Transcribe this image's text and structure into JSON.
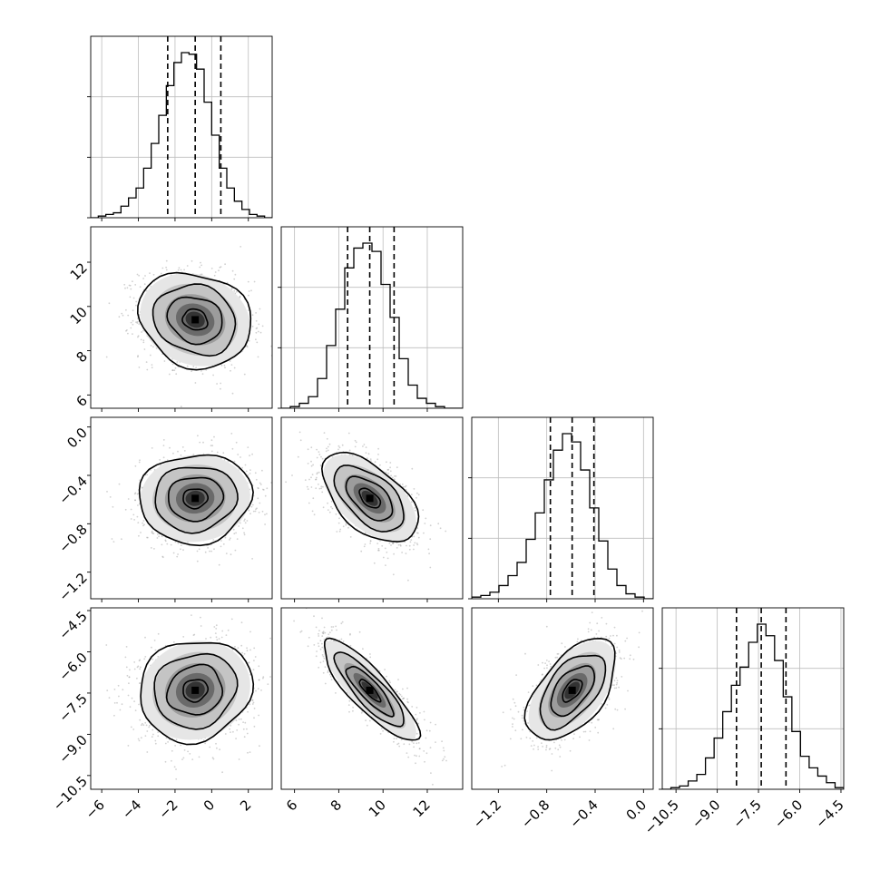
{
  "chart_data": {
    "type": "corner",
    "parameters": 4,
    "grid": true,
    "quantile_lines": "dashed",
    "axes": {
      "p0": {
        "range": [
          -6.6,
          3.3
        ],
        "ticks": [
          -6,
          -4,
          -2,
          0,
          2
        ],
        "tick_labels": [
          "−6",
          "−4",
          "−2",
          "0",
          "2"
        ]
      },
      "p1": {
        "range": [
          5.4,
          13.6
        ],
        "ticks": [
          6,
          8,
          10,
          12
        ],
        "tick_labels": [
          "6",
          "8",
          "10",
          "12"
        ]
      },
      "p2": {
        "range": [
          -1.42,
          0.08
        ],
        "ticks": [
          -1.2,
          -0.8,
          -0.4,
          0.0
        ],
        "tick_labels": [
          "−1.2",
          "−0.8",
          "−0.4",
          "0.0"
        ]
      },
      "p3": {
        "range": [
          -11.0,
          -4.4
        ],
        "ticks": [
          -10.5,
          -9.0,
          -7.5,
          -6.0,
          -4.5
        ],
        "tick_labels": [
          "−10.5",
          "−9.0",
          "−7.5",
          "−6.0",
          "−4.5"
        ]
      }
    },
    "quantiles": {
      "p0": [
        -2.4,
        -0.9,
        0.5
      ],
      "p1": [
        8.4,
        9.4,
        10.5
      ],
      "p2": [
        -0.77,
        -0.59,
        -0.41
      ],
      "p3": [
        -8.3,
        -7.4,
        -6.5
      ]
    },
    "histograms": {
      "p0": [
        0,
        1,
        2,
        3,
        7,
        12,
        18,
        30,
        45,
        62,
        80,
        94,
        100,
        99,
        90,
        70,
        50,
        30,
        18,
        10,
        5,
        2,
        1,
        0
      ],
      "p1": [
        0,
        1,
        3,
        7,
        18,
        38,
        60,
        85,
        97,
        100,
        95,
        75,
        55,
        30,
        14,
        6,
        3,
        1,
        0,
        0
      ],
      "p2": [
        1,
        2,
        4,
        8,
        14,
        22,
        36,
        52,
        72,
        90,
        100,
        95,
        78,
        55,
        35,
        18,
        8,
        3,
        1,
        0
      ],
      "p3": [
        0,
        1,
        2,
        5,
        9,
        19,
        31,
        47,
        63,
        74,
        89,
        100,
        93,
        78,
        56,
        35,
        20,
        13,
        8,
        4,
        1
      ]
    },
    "pairs": [
      {
        "x": "p0",
        "y": "p1",
        "mean": [
          -0.9,
          9.4
        ],
        "sd": [
          1.5,
          1.05
        ],
        "rho": -0.15
      },
      {
        "x": "p0",
        "y": "p2",
        "mean": [
          -0.9,
          -0.59
        ],
        "sd": [
          1.5,
          0.18
        ],
        "rho": 0.05
      },
      {
        "x": "p1",
        "y": "p2",
        "mean": [
          9.4,
          -0.59
        ],
        "sd": [
          1.05,
          0.18
        ],
        "rho": -0.55
      },
      {
        "x": "p0",
        "y": "p3",
        "mean": [
          -0.9,
          -7.4
        ],
        "sd": [
          1.5,
          0.9
        ],
        "rho": 0.1
      },
      {
        "x": "p1",
        "y": "p3",
        "mean": [
          9.4,
          -7.4
        ],
        "sd": [
          1.05,
          0.9
        ],
        "rho": -0.85
      },
      {
        "x": "p2",
        "y": "p3",
        "mean": [
          -0.59,
          -7.4
        ],
        "sd": [
          0.18,
          0.9
        ],
        "rho": 0.55
      }
    ],
    "contour_levels_sigma": [
      0.5,
      1.0,
      1.5,
      2.0
    ],
    "colors": {
      "line": "#000000",
      "scatter": "#9a9a9a",
      "grid": "#bdbdbd"
    }
  }
}
